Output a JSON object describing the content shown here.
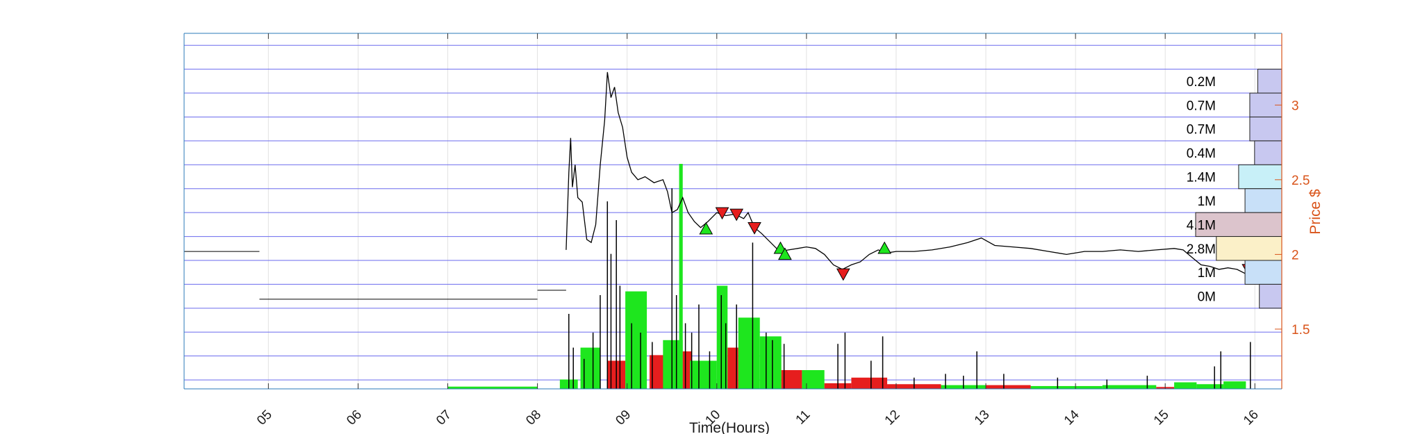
{
  "chart_data": {
    "type": "line",
    "xlabel": "Time(Hours)",
    "ylabel_right": "Price $",
    "x_ticks": [
      "05",
      "06",
      "07",
      "08",
      "09",
      "10",
      "11",
      "12",
      "13",
      "14",
      "15",
      "16"
    ],
    "xlim": [
      4.06,
      16.3
    ],
    "ylim": [
      1.1,
      3.48
    ],
    "y_ticks": [
      1.5,
      2,
      2.5,
      3
    ],
    "y_tick_labels": [
      "1.5",
      "2",
      "2.5",
      "3"
    ],
    "grid": true,
    "price_series": {
      "name": "Price",
      "premarket": [
        {
          "x": [
            4.06,
            4.9
          ],
          "y": 2.02
        },
        {
          "x": [
            4.9,
            8.0
          ],
          "y": 1.7
        },
        {
          "x": [
            8.0,
            8.32
          ],
          "y": 1.76
        }
      ],
      "points": [
        [
          8.32,
          2.03
        ],
        [
          8.35,
          2.55
        ],
        [
          8.37,
          2.78
        ],
        [
          8.39,
          2.45
        ],
        [
          8.42,
          2.6
        ],
        [
          8.45,
          2.38
        ],
        [
          8.5,
          2.35
        ],
        [
          8.55,
          2.1
        ],
        [
          8.6,
          2.08
        ],
        [
          8.65,
          2.2
        ],
        [
          8.7,
          2.6
        ],
        [
          8.75,
          2.9
        ],
        [
          8.78,
          3.22
        ],
        [
          8.82,
          3.05
        ],
        [
          8.86,
          3.12
        ],
        [
          8.9,
          2.95
        ],
        [
          8.95,
          2.85
        ],
        [
          9.0,
          2.65
        ],
        [
          9.05,
          2.55
        ],
        [
          9.12,
          2.5
        ],
        [
          9.2,
          2.52
        ],
        [
          9.3,
          2.48
        ],
        [
          9.4,
          2.5
        ],
        [
          9.45,
          2.42
        ],
        [
          9.5,
          2.28
        ],
        [
          9.56,
          2.3
        ],
        [
          9.62,
          2.38
        ],
        [
          9.68,
          2.28
        ],
        [
          9.75,
          2.22
        ],
        [
          9.82,
          2.18
        ],
        [
          9.9,
          2.22
        ],
        [
          10.0,
          2.28
        ],
        [
          10.1,
          2.26
        ],
        [
          10.2,
          2.27
        ],
        [
          10.3,
          2.24
        ],
        [
          10.35,
          2.28
        ],
        [
          10.42,
          2.18
        ],
        [
          10.5,
          2.14
        ],
        [
          10.6,
          2.08
        ],
        [
          10.7,
          2.02
        ],
        [
          10.8,
          2.03
        ],
        [
          10.9,
          2.04
        ],
        [
          11.0,
          2.05
        ],
        [
          11.1,
          2.04
        ],
        [
          11.2,
          2.0
        ],
        [
          11.3,
          1.93
        ],
        [
          11.4,
          1.9
        ],
        [
          11.5,
          1.93
        ],
        [
          11.6,
          1.95
        ],
        [
          11.7,
          2.0
        ],
        [
          11.8,
          2.03
        ],
        [
          11.9,
          2.01
        ],
        [
          12.0,
          2.02
        ],
        [
          12.2,
          2.02
        ],
        [
          12.4,
          2.03
        ],
        [
          12.6,
          2.05
        ],
        [
          12.8,
          2.08
        ],
        [
          12.95,
          2.11
        ],
        [
          13.1,
          2.06
        ],
        [
          13.3,
          2.05
        ],
        [
          13.5,
          2.04
        ],
        [
          13.7,
          2.02
        ],
        [
          13.9,
          2.0
        ],
        [
          14.1,
          2.02
        ],
        [
          14.3,
          2.02
        ],
        [
          14.5,
          2.03
        ],
        [
          14.7,
          2.02
        ],
        [
          14.9,
          2.03
        ],
        [
          15.1,
          2.04
        ],
        [
          15.2,
          2.03
        ],
        [
          15.3,
          1.98
        ],
        [
          15.4,
          1.93
        ],
        [
          15.5,
          1.92
        ],
        [
          15.6,
          1.9
        ],
        [
          15.7,
          1.91
        ],
        [
          15.8,
          1.9
        ],
        [
          15.9,
          1.87
        ],
        [
          16.0,
          1.88
        ]
      ]
    },
    "volume_bars": [
      {
        "x0": 7.0,
        "x1": 8.0,
        "v": 0.012,
        "side": "buy"
      },
      {
        "x0": 8.25,
        "x1": 8.45,
        "v": 0.05,
        "side": "buy"
      },
      {
        "x0": 8.48,
        "x1": 8.7,
        "v": 0.22,
        "side": "buy"
      },
      {
        "x0": 8.78,
        "x1": 8.98,
        "v": 0.15,
        "side": "sell"
      },
      {
        "x0": 8.98,
        "x1": 9.22,
        "v": 0.52,
        "side": "buy"
      },
      {
        "x0": 9.25,
        "x1": 9.42,
        "v": 0.18,
        "side": "sell"
      },
      {
        "x0": 9.4,
        "x1": 9.62,
        "v": 0.26,
        "side": "buy"
      },
      {
        "x0": 9.58,
        "x1": 9.62,
        "v": 1.2,
        "side": "buy"
      },
      {
        "x0": 9.62,
        "x1": 9.72,
        "v": 0.2,
        "side": "sell"
      },
      {
        "x0": 9.7,
        "x1": 10.0,
        "v": 0.15,
        "side": "buy"
      },
      {
        "x0": 10.0,
        "x1": 10.12,
        "v": 0.55,
        "side": "buy"
      },
      {
        "x0": 10.12,
        "x1": 10.24,
        "v": 0.22,
        "side": "sell"
      },
      {
        "x0": 10.24,
        "x1": 10.48,
        "v": 0.38,
        "side": "buy"
      },
      {
        "x0": 10.48,
        "x1": 10.72,
        "v": 0.28,
        "side": "buy"
      },
      {
        "x0": 10.72,
        "x1": 10.95,
        "v": 0.1,
        "side": "sell"
      },
      {
        "x0": 10.95,
        "x1": 11.2,
        "v": 0.1,
        "side": "buy"
      },
      {
        "x0": 11.2,
        "x1": 11.5,
        "v": 0.03,
        "side": "sell"
      },
      {
        "x0": 11.5,
        "x1": 11.9,
        "v": 0.06,
        "side": "sell"
      },
      {
        "x0": 11.9,
        "x1": 12.5,
        "v": 0.025,
        "side": "sell"
      },
      {
        "x0": 12.5,
        "x1": 13.0,
        "v": 0.02,
        "side": "buy"
      },
      {
        "x0": 13.0,
        "x1": 13.5,
        "v": 0.02,
        "side": "sell"
      },
      {
        "x0": 13.5,
        "x1": 14.3,
        "v": 0.015,
        "side": "buy"
      },
      {
        "x0": 14.3,
        "x1": 14.9,
        "v": 0.02,
        "side": "buy"
      },
      {
        "x0": 14.9,
        "x1": 15.1,
        "v": 0.01,
        "side": "sell"
      },
      {
        "x0": 15.1,
        "x1": 15.35,
        "v": 0.035,
        "side": "buy"
      },
      {
        "x0": 15.35,
        "x1": 15.65,
        "v": 0.025,
        "side": "buy"
      },
      {
        "x0": 15.65,
        "x1": 15.9,
        "v": 0.04,
        "side": "buy"
      }
    ],
    "volume_spikes": [
      [
        8.35,
        0.4
      ],
      [
        8.4,
        0.22
      ],
      [
        8.52,
        0.16
      ],
      [
        8.62,
        0.3
      ],
      [
        8.7,
        0.5
      ],
      [
        8.78,
        1.0
      ],
      [
        8.82,
        0.72
      ],
      [
        8.88,
        0.9
      ],
      [
        8.92,
        0.55
      ],
      [
        9.05,
        0.35
      ],
      [
        9.15,
        0.3
      ],
      [
        9.28,
        0.25
      ],
      [
        9.5,
        1.07
      ],
      [
        9.55,
        0.5
      ],
      [
        9.65,
        0.35
      ],
      [
        9.72,
        0.3
      ],
      [
        9.8,
        0.45
      ],
      [
        9.92,
        0.2
      ],
      [
        10.05,
        0.5
      ],
      [
        10.1,
        0.35
      ],
      [
        10.22,
        0.45
      ],
      [
        10.4,
        0.78
      ],
      [
        10.55,
        0.3
      ],
      [
        10.62,
        0.26
      ],
      [
        10.75,
        0.24
      ],
      [
        11.35,
        0.24
      ],
      [
        11.43,
        0.3
      ],
      [
        11.72,
        0.15
      ],
      [
        11.85,
        0.28
      ],
      [
        12.2,
        0.06
      ],
      [
        12.55,
        0.08
      ],
      [
        12.75,
        0.07
      ],
      [
        12.9,
        0.2
      ],
      [
        13.2,
        0.08
      ],
      [
        13.8,
        0.06
      ],
      [
        14.35,
        0.05
      ],
      [
        14.8,
        0.07
      ],
      [
        15.55,
        0.12
      ],
      [
        15.62,
        0.2
      ],
      [
        15.95,
        0.25
      ]
    ],
    "signals": [
      {
        "x": 9.88,
        "y": 2.17,
        "type": "buy"
      },
      {
        "x": 10.06,
        "y": 2.28,
        "type": "sell"
      },
      {
        "x": 10.22,
        "y": 2.27,
        "type": "sell"
      },
      {
        "x": 10.42,
        "y": 2.18,
        "type": "sell"
      },
      {
        "x": 10.71,
        "y": 2.04,
        "type": "buy"
      },
      {
        "x": 10.76,
        "y": 2.0,
        "type": "buy"
      },
      {
        "x": 11.41,
        "y": 1.87,
        "type": "sell"
      },
      {
        "x": 11.87,
        "y": 2.04,
        "type": "buy"
      },
      {
        "x": 15.93,
        "y": 1.9,
        "type": "sell"
      }
    ],
    "volume_profile": [
      {
        "label": "0.2M",
        "y0": 3.08,
        "y1": 3.24,
        "value": 0.2,
        "color": "#c8c8f0"
      },
      {
        "label": "0.7M",
        "y0": 2.92,
        "y1": 3.08,
        "value": 0.7,
        "color": "#c8c8f0"
      },
      {
        "label": "0.7M",
        "y0": 2.76,
        "y1": 2.92,
        "value": 0.7,
        "color": "#c8c8f0"
      },
      {
        "label": "0.4M",
        "y0": 2.6,
        "y1": 2.76,
        "value": 0.4,
        "color": "#c8c8f0"
      },
      {
        "label": "1.4M",
        "y0": 2.44,
        "y1": 2.6,
        "value": 1.4,
        "color": "#c8f0f8"
      },
      {
        "label": "1M",
        "y0": 2.28,
        "y1": 2.44,
        "value": 1.0,
        "color": "#c8e0f8"
      },
      {
        "label": "4.1M",
        "y0": 2.12,
        "y1": 2.28,
        "value": 4.1,
        "color": "#dcc4cc"
      },
      {
        "label": "2.8M",
        "y0": 1.96,
        "y1": 2.12,
        "value": 2.8,
        "color": "#fbf0c8"
      },
      {
        "label": "1M",
        "y0": 1.8,
        "y1": 1.96,
        "value": 1.0,
        "color": "#c8e0f8"
      },
      {
        "label": "0M",
        "y0": 1.64,
        "y1": 1.8,
        "value": 0.1,
        "color": "#c8c8f0"
      }
    ],
    "colors": {
      "price_line": "#000000",
      "buy": "#1ee61e",
      "sell": "#e61e1e",
      "price_axis": "#d95319",
      "frame": "#2a7ab8",
      "hgrid": "#6a6aee",
      "vgrid": "#e2e2e2"
    }
  }
}
